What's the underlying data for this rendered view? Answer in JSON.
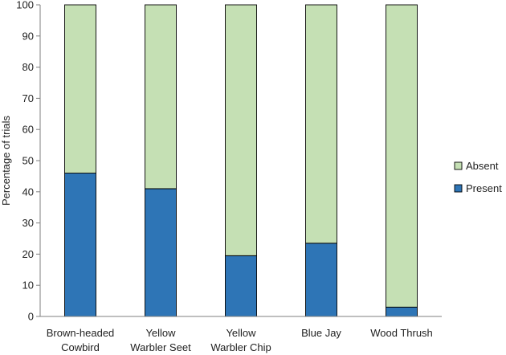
{
  "chart_data": {
    "type": "bar",
    "stacked": true,
    "categories": [
      [
        "Brown-headed",
        "Cowbird"
      ],
      [
        "Yellow",
        "Warbler Seet"
      ],
      [
        "Yellow",
        "Warbler Chip"
      ],
      [
        "Blue Jay"
      ],
      [
        "Wood Thrush"
      ]
    ],
    "series": [
      {
        "name": "Present",
        "color": "#2e75b6",
        "values": [
          46,
          41,
          19.5,
          23.5,
          3
        ]
      },
      {
        "name": "Absent",
        "color": "#c5e0b4",
        "values": [
          54,
          59,
          80.5,
          76.5,
          97
        ]
      }
    ],
    "ylabel": "Percentage of trials",
    "ylim": [
      0,
      100
    ],
    "yticks": [
      0,
      10,
      20,
      30,
      40,
      50,
      60,
      70,
      80,
      90,
      100
    ],
    "legend_order": [
      "Absent",
      "Present"
    ],
    "legend_position": "right",
    "grid": false
  }
}
